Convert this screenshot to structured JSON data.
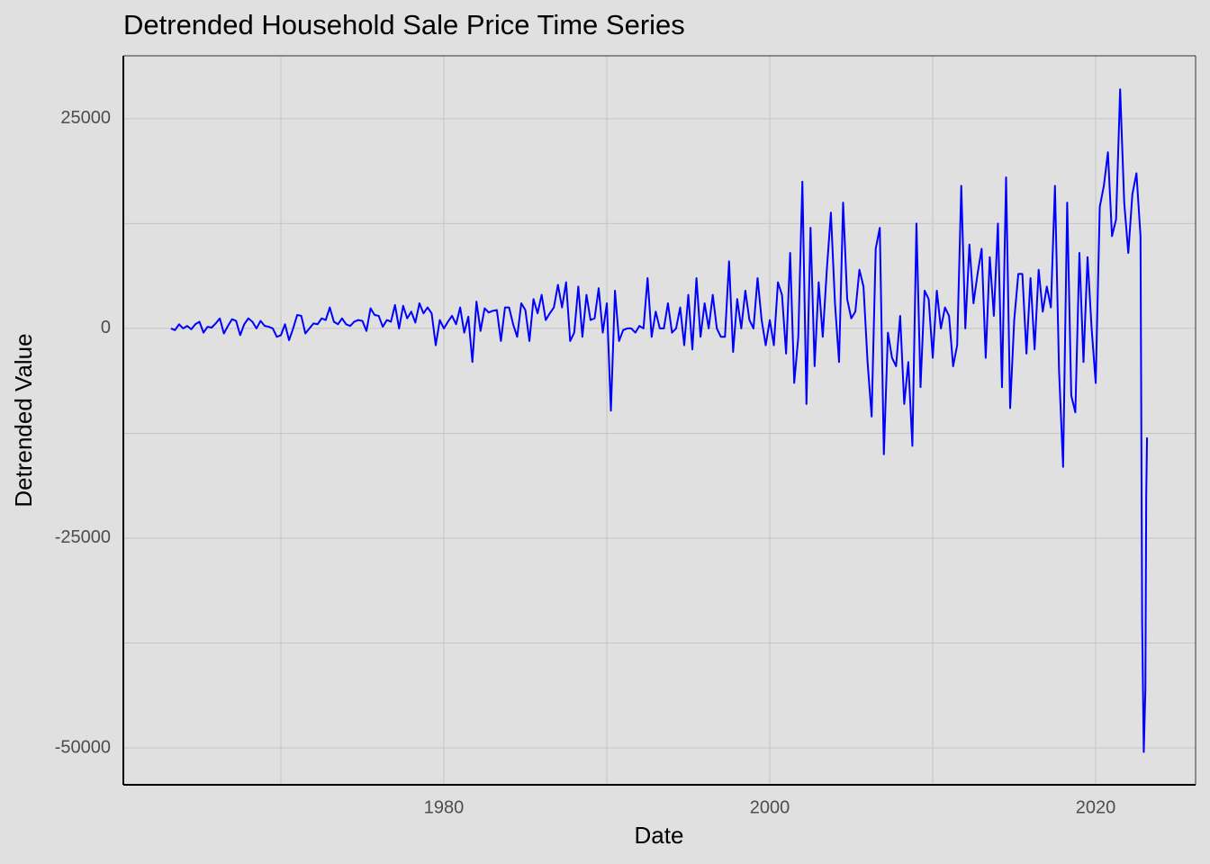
{
  "chart_data": {
    "type": "line",
    "title": "Detrended Household Sale Price Time Series",
    "x_label": "Date",
    "y_label": "Detrended Value",
    "color": "#0000ff",
    "grid": true,
    "xlim": [
      1960.33,
      2026.13
    ],
    "xticks": [
      1980,
      2000,
      2020
    ],
    "x_minor_ticks": [
      1970,
      1990,
      2010
    ],
    "ylim": [
      -54400,
      32500
    ],
    "yticks": [
      -50000,
      -25000,
      0,
      25000
    ],
    "y_minor_ticks": [
      -37500,
      -12500,
      12500
    ],
    "x": [
      1963.25,
      1963.5,
      1963.75,
      1964,
      1964.25,
      1964.5,
      1964.75,
      1965,
      1965.25,
      1965.5,
      1965.75,
      1966,
      1966.25,
      1966.5,
      1966.75,
      1967,
      1967.25,
      1967.5,
      1967.75,
      1968,
      1968.25,
      1968.5,
      1968.75,
      1969,
      1969.25,
      1969.5,
      1969.75,
      1970,
      1970.25,
      1970.5,
      1970.75,
      1971,
      1971.25,
      1971.5,
      1971.75,
      1972,
      1972.25,
      1972.5,
      1972.75,
      1973,
      1973.25,
      1973.5,
      1973.75,
      1974,
      1974.25,
      1974.5,
      1974.75,
      1975,
      1975.25,
      1975.5,
      1975.75,
      1976,
      1976.25,
      1976.5,
      1976.75,
      1977,
      1977.25,
      1977.5,
      1977.75,
      1978,
      1978.25,
      1978.5,
      1978.75,
      1979,
      1979.25,
      1979.5,
      1979.75,
      1980,
      1980.25,
      1980.5,
      1980.75,
      1981,
      1981.25,
      1981.5,
      1981.75,
      1982,
      1982.25,
      1982.5,
      1982.75,
      1983,
      1983.25,
      1983.5,
      1983.75,
      1984,
      1984.25,
      1984.5,
      1984.75,
      1985,
      1985.25,
      1985.5,
      1985.75,
      1986,
      1986.25,
      1986.5,
      1986.75,
      1987,
      1987.25,
      1987.5,
      1987.75,
      1988,
      1988.25,
      1988.5,
      1988.75,
      1989,
      1989.25,
      1989.5,
      1989.75,
      1990,
      1990.25,
      1990.5,
      1990.75,
      1991,
      1991.25,
      1991.5,
      1991.75,
      1992,
      1992.25,
      1992.5,
      1992.75,
      1993,
      1993.25,
      1993.5,
      1993.75,
      1994,
      1994.25,
      1994.5,
      1994.75,
      1995,
      1995.25,
      1995.5,
      1995.75,
      1996,
      1996.25,
      1996.5,
      1996.75,
      1997,
      1997.25,
      1997.5,
      1997.75,
      1998,
      1998.25,
      1998.5,
      1998.75,
      1999,
      1999.25,
      1999.5,
      1999.75,
      2000,
      2000.25,
      2000.5,
      2000.75,
      2001,
      2001.25,
      2001.5,
      2001.75,
      2002,
      2002.25,
      2002.5,
      2002.75,
      2003,
      2003.25,
      2003.5,
      2003.75,
      2004,
      2004.25,
      2004.5,
      2004.75,
      2005,
      2005.25,
      2005.5,
      2005.75,
      2006,
      2006.25,
      2006.5,
      2006.75,
      2007,
      2007.25,
      2007.5,
      2007.75,
      2008,
      2008.25,
      2008.5,
      2008.75,
      2009,
      2009.25,
      2009.5,
      2009.75,
      2010,
      2010.25,
      2010.5,
      2010.75,
      2011,
      2011.25,
      2011.5,
      2011.75,
      2012,
      2012.25,
      2012.5,
      2012.75,
      2013,
      2013.25,
      2013.5,
      2013.75,
      2014,
      2014.25,
      2014.5,
      2014.75,
      2015,
      2015.25,
      2015.5,
      2015.75,
      2016,
      2016.25,
      2016.5,
      2016.75,
      2017,
      2017.25,
      2017.5,
      2017.75,
      2018,
      2018.25,
      2018.5,
      2018.75,
      2019,
      2019.25,
      2019.5,
      2019.75,
      2020,
      2020.25,
      2020.5,
      2020.75,
      2021,
      2021.25,
      2021.5,
      2021.75,
      2022,
      2022.25,
      2022.5,
      2022.75,
      2022.85,
      2022.95,
      2023.05,
      2023.1,
      2023.15
    ],
    "values": [
      0,
      -200,
      500,
      0,
      300,
      -100,
      500,
      800,
      -500,
      200,
      100,
      600,
      1200,
      -600,
      300,
      1100,
      900,
      -800,
      500,
      1200,
      800,
      0,
      900,
      300,
      200,
      0,
      -1000,
      -800,
      500,
      -1400,
      0,
      1600,
      1500,
      -600,
      0,
      600,
      500,
      1200,
      1000,
      2500,
      800,
      500,
      1200,
      500,
      300,
      800,
      1000,
      900,
      -300,
      2400,
      1600,
      1500,
      200,
      1000,
      800,
      2800,
      0,
      2700,
      1200,
      2000,
      700,
      3000,
      1800,
      2500,
      1800,
      -2000,
      1000,
      0,
      800,
      1500,
      500,
      2500,
      -500,
      1400,
      -4000,
      3200,
      -300,
      2400,
      1900,
      2100,
      2200,
      -1500,
      2500,
      2500,
      500,
      -1000,
      3000,
      2200,
      -1500,
      3500,
      1800,
      4000,
      1000,
      1800,
      2500,
      5200,
      2500,
      5500,
      -1500,
      -500,
      5000,
      -1000,
      4000,
      1000,
      1200,
      4800,
      -500,
      3000,
      -9800,
      4500,
      -1500,
      -200,
      0,
      0,
      -500,
      300,
      0,
      6000,
      -1000,
      2000,
      0,
      0,
      3000,
      -500,
      0,
      2500,
      -2000,
      4000,
      -2500,
      6000,
      -1000,
      3000,
      0,
      4000,
      0,
      -1000,
      -1000,
      8000,
      -2800,
      3500,
      0,
      4500,
      1000,
      0,
      6000,
      1000,
      -2000,
      1000,
      -2000,
      5500,
      4000,
      -3000,
      9000,
      -6500,
      -1000,
      17500,
      -9000,
      12000,
      -4500,
      5500,
      -1000,
      7000,
      13800,
      3000,
      -4000,
      15000,
      3500,
      1200,
      2000,
      7000,
      5000,
      -4000,
      -10500,
      9500,
      12000,
      -15000,
      -500,
      -3500,
      -4500,
      1500,
      -9000,
      -4000,
      -14000,
      12500,
      -7000,
      4500,
      3500,
      -3500,
      4500,
      0,
      2500,
      1500,
      -4500,
      -2000,
      17000,
      0,
      10000,
      3000,
      6500,
      9500,
      -3500,
      8500,
      1500,
      12500,
      -7000,
      18000,
      -9500,
      1000,
      6500,
      6500,
      -3000,
      6000,
      -2500,
      7000,
      2000,
      5000,
      2500,
      17000,
      -5000,
      -16500,
      15000,
      -8000,
      -10000,
      9000,
      -4000,
      8500,
      0,
      -6500,
      14500,
      17000,
      21000,
      11000,
      13000,
      28500,
      15000,
      9000,
      16000,
      18500,
      11000,
      -35000,
      -50500,
      -43000,
      -20000,
      -13000
    ]
  }
}
